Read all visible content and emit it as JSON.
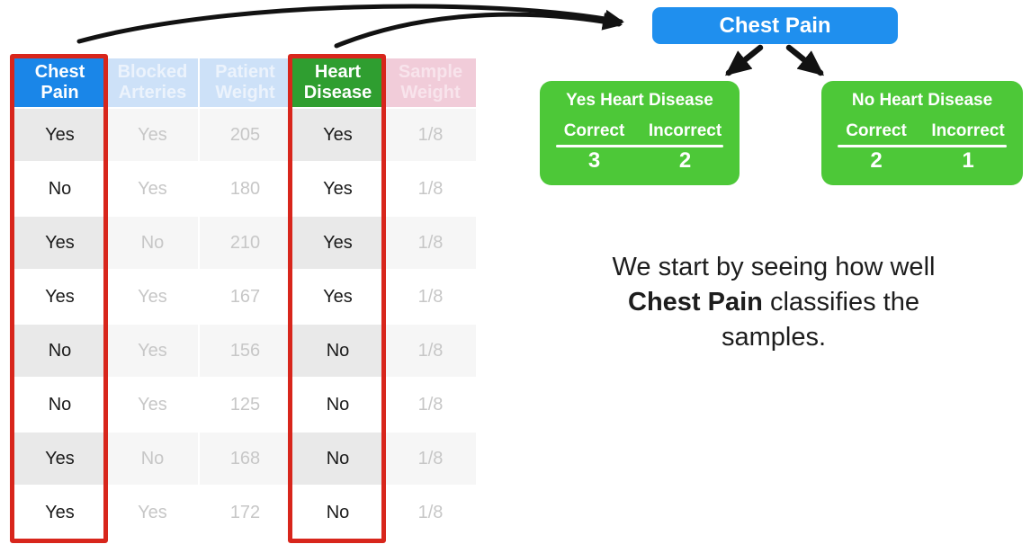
{
  "table": {
    "columns": [
      {
        "key": "chest-pain",
        "label": "Chest Pain",
        "state": "active-blue"
      },
      {
        "key": "blocked-arteries",
        "label": "Blocked Arteries",
        "state": "faded-blue"
      },
      {
        "key": "patient-weight",
        "label": "Patient Weight",
        "state": "faded-blue"
      },
      {
        "key": "heart-disease",
        "label": "Heart Disease",
        "state": "active-green"
      },
      {
        "key": "sample-weight",
        "label": "Sample Weight",
        "state": "faded-pink"
      }
    ],
    "rows": [
      [
        "Yes",
        "Yes",
        "205",
        "Yes",
        "1/8"
      ],
      [
        "No",
        "Yes",
        "180",
        "Yes",
        "1/8"
      ],
      [
        "Yes",
        "No",
        "210",
        "Yes",
        "1/8"
      ],
      [
        "Yes",
        "Yes",
        "167",
        "Yes",
        "1/8"
      ],
      [
        "No",
        "Yes",
        "156",
        "No",
        "1/8"
      ],
      [
        "No",
        "Yes",
        "125",
        "No",
        "1/8"
      ],
      [
        "Yes",
        "No",
        "168",
        "No",
        "1/8"
      ],
      [
        "Yes",
        "Yes",
        "172",
        "No",
        "1/8"
      ]
    ]
  },
  "tree": {
    "root": {
      "label": "Chest Pain"
    },
    "leaves": [
      {
        "title": "Yes Heart Disease",
        "correct_label": "Correct",
        "incorrect_label": "Incorrect",
        "correct_count": "3",
        "incorrect_count": "2"
      },
      {
        "title": "No Heart Disease",
        "correct_label": "Correct",
        "incorrect_label": "Incorrect",
        "correct_count": "2",
        "incorrect_count": "1"
      }
    ]
  },
  "caption": {
    "line1": "We start by seeing how well",
    "highlight": "Chest Pain",
    "line2_rest": " classifies the",
    "line3": "samples."
  },
  "colors": {
    "active_blue": "#1a86e8",
    "faded_blue_bg": "#cde1f8",
    "active_green": "#2f9e30",
    "faded_pink_bg": "#f1ccd9",
    "node_blue": "#1f8fee",
    "leaf_green": "#4dc838",
    "highlight_red": "#d8261c",
    "arrow_black": "#121212"
  }
}
